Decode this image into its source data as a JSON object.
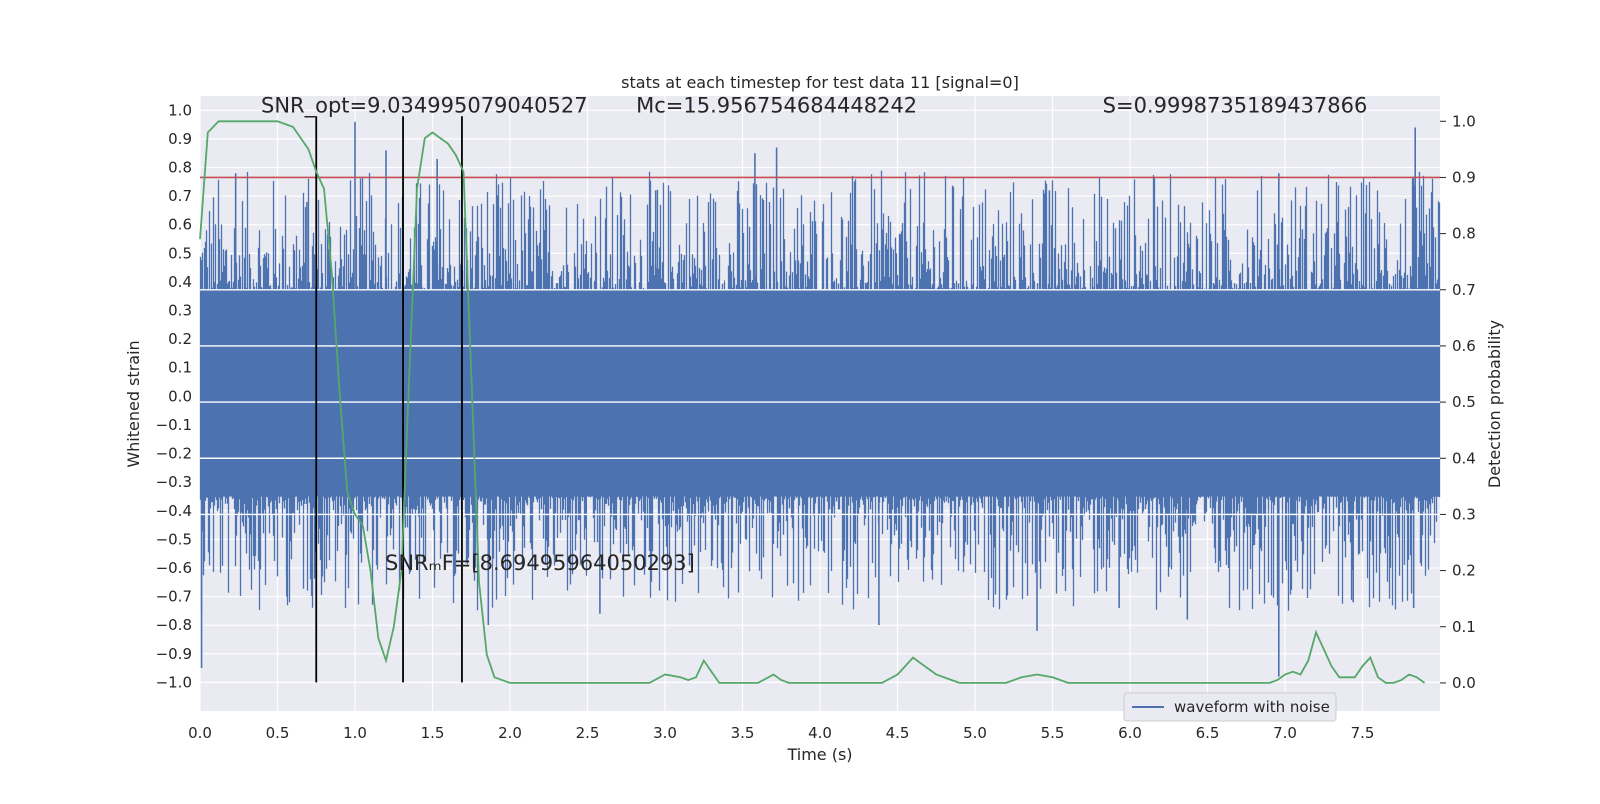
{
  "chart_data": {
    "type": "line",
    "title": "stats at each timestep for test data 11 [signal=0]",
    "xlabel": "Time (s)",
    "ylabel_left": "Whitened strain",
    "ylabel_right": "Detection probability",
    "xlim": [
      0.0,
      8.0
    ],
    "ylim_left": [
      -1.1,
      1.05
    ],
    "ylim_right": [
      -0.05,
      1.045
    ],
    "x_ticks": [
      0.0,
      0.5,
      1.0,
      1.5,
      2.0,
      2.5,
      3.0,
      3.5,
      4.0,
      4.5,
      5.0,
      5.5,
      6.0,
      6.5,
      7.0,
      7.5
    ],
    "x_tick_labels": [
      "0.0",
      "0.5",
      "1.0",
      "1.5",
      "2.0",
      "2.5",
      "3.0",
      "3.5",
      "4.0",
      "4.5",
      "5.0",
      "5.5",
      "6.0",
      "6.5",
      "7.0",
      "7.5"
    ],
    "y_left_ticks": [
      1.0,
      0.9,
      0.8,
      0.7,
      0.6,
      0.5,
      0.4,
      0.3,
      0.2,
      0.1,
      0.0,
      -0.1,
      -0.2,
      -0.3,
      -0.4,
      -0.5,
      -0.6,
      -0.7,
      -0.8,
      -0.9,
      -1.0
    ],
    "y_left_tick_labels": [
      "1.0",
      "0.9",
      "0.8",
      "0.7",
      "0.6",
      "0.5",
      "0.4",
      "0.3",
      "0.2",
      "0.1",
      "0.0",
      "−0.1",
      "−0.2",
      "−0.3",
      "−0.4",
      "−0.5",
      "−0.6",
      "−0.7",
      "−0.8",
      "−0.9",
      "−1.0"
    ],
    "y_right_ticks": [
      1.0,
      0.9,
      0.8,
      0.7,
      0.6,
      0.5,
      0.4,
      0.3,
      0.2,
      0.1,
      0.0
    ],
    "y_right_tick_labels": [
      "1.0",
      "0.9",
      "0.8",
      "0.7",
      "0.6",
      "0.5",
      "0.4",
      "0.3",
      "0.2",
      "0.1",
      "0.0"
    ],
    "grid": true,
    "legend": {
      "placement": "lower-right",
      "entries": [
        {
          "label": "waveform with noise",
          "color": "#4c72b0"
        }
      ]
    },
    "waveform": {
      "name": "waveform with noise",
      "color": "#4c72b0",
      "dense_band": [
        -0.35,
        0.37
      ],
      "spikes": [
        {
          "x": 0.23,
          "y": 0.78
        },
        {
          "x": 0.69,
          "y": 0.68
        },
        {
          "x": 1.0,
          "y": 0.96
        },
        {
          "x": 1.2,
          "y": 0.86
        },
        {
          "x": 1.53,
          "y": 0.83
        },
        {
          "x": 3.58,
          "y": 0.85
        },
        {
          "x": 3.72,
          "y": 0.87
        },
        {
          "x": 6.96,
          "y": 0.78
        },
        {
          "x": 7.84,
          "y": 0.94
        },
        {
          "x": 5.48,
          "y": 0.72
        },
        {
          "x": 2.94,
          "y": 0.72
        },
        {
          "x": 1.86,
          "y": -0.8
        },
        {
          "x": 2.58,
          "y": -0.76
        },
        {
          "x": 4.38,
          "y": -0.8
        },
        {
          "x": 5.4,
          "y": -0.82
        },
        {
          "x": 6.37,
          "y": -0.78
        },
        {
          "x": 6.96,
          "y": -0.98
        },
        {
          "x": 7.83,
          "y": -0.74
        },
        {
          "x": 0.56,
          "y": -0.7
        },
        {
          "x": 7.44,
          "y": -0.72
        },
        {
          "x": 5.93,
          "y": -0.74
        },
        {
          "x": 0.01,
          "y": -0.95
        }
      ]
    },
    "detection_probability": {
      "color": "#55a868",
      "x": [
        0.0,
        0.05,
        0.12,
        0.3,
        0.5,
        0.6,
        0.65,
        0.7,
        0.75,
        0.8,
        0.85,
        0.9,
        0.95,
        1.0,
        1.05,
        1.1,
        1.15,
        1.2,
        1.25,
        1.3,
        1.35,
        1.4,
        1.45,
        1.5,
        1.55,
        1.6,
        1.65,
        1.7,
        1.75,
        1.8,
        1.85,
        1.9,
        2.0,
        2.2,
        2.4,
        2.6,
        2.8,
        2.9,
        3.0,
        3.1,
        3.15,
        3.2,
        3.25,
        3.3,
        3.35,
        3.4,
        3.5,
        3.6,
        3.7,
        3.75,
        3.8,
        3.9,
        4.0,
        4.2,
        4.4,
        4.5,
        4.55,
        4.6,
        4.65,
        4.7,
        4.75,
        4.8,
        4.85,
        4.9,
        5.0,
        5.2,
        5.3,
        5.4,
        5.5,
        5.6,
        5.8,
        6.0,
        6.2,
        6.4,
        6.6,
        6.8,
        6.9,
        6.95,
        7.0,
        7.05,
        7.1,
        7.15,
        7.2,
        7.25,
        7.3,
        7.35,
        7.4,
        7.45,
        7.5,
        7.55,
        7.6,
        7.65,
        7.7,
        7.75,
        7.8,
        7.85,
        7.9
      ],
      "y": [
        0.79,
        0.98,
        1.0,
        1.0,
        1.0,
        0.99,
        0.97,
        0.95,
        0.91,
        0.88,
        0.73,
        0.52,
        0.34,
        0.3,
        0.28,
        0.2,
        0.08,
        0.04,
        0.1,
        0.2,
        0.55,
        0.88,
        0.97,
        0.98,
        0.97,
        0.96,
        0.94,
        0.91,
        0.55,
        0.18,
        0.05,
        0.01,
        0.0,
        0.0,
        0.0,
        0.0,
        0.0,
        0.0,
        0.015,
        0.01,
        0.005,
        0.01,
        0.04,
        0.02,
        0.0,
        0.0,
        0.0,
        0.0,
        0.015,
        0.005,
        0.0,
        0.0,
        0.0,
        0.0,
        0.0,
        0.015,
        0.03,
        0.045,
        0.035,
        0.025,
        0.015,
        0.01,
        0.005,
        0.0,
        0.0,
        0.0,
        0.01,
        0.015,
        0.01,
        0.0,
        0.0,
        0.0,
        0.0,
        0.0,
        0.0,
        0.0,
        0.0,
        0.005,
        0.015,
        0.02,
        0.015,
        0.04,
        0.09,
        0.06,
        0.03,
        0.01,
        0.01,
        0.01,
        0.03,
        0.045,
        0.01,
        0.0,
        0.0,
        0.005,
        0.015,
        0.01,
        0.0
      ]
    },
    "threshold": {
      "value": 0.9,
      "axis": "right",
      "color": "#c44e52"
    },
    "vertical_lines": {
      "x": [
        0.75,
        1.31,
        1.69
      ],
      "y_range": [
        -1.0,
        1.0
      ],
      "color": "#000000"
    },
    "annotations": [
      {
        "id": "snr-opt",
        "text": "SNR_opt=9.034995079040527",
        "x": 0.2,
        "y": 1.0
      },
      {
        "id": "mc",
        "text": "Mᴄ=15.956754684448242",
        "x": 2.62,
        "y": 1.0
      },
      {
        "id": "s",
        "text": "S=0.9998735189437866",
        "x": 5.63,
        "y": 1.0
      },
      {
        "id": "snr-mf",
        "text": "SNRₘF=[8.69495964050293]",
        "x": 1.0,
        "y": -0.6
      }
    ]
  }
}
